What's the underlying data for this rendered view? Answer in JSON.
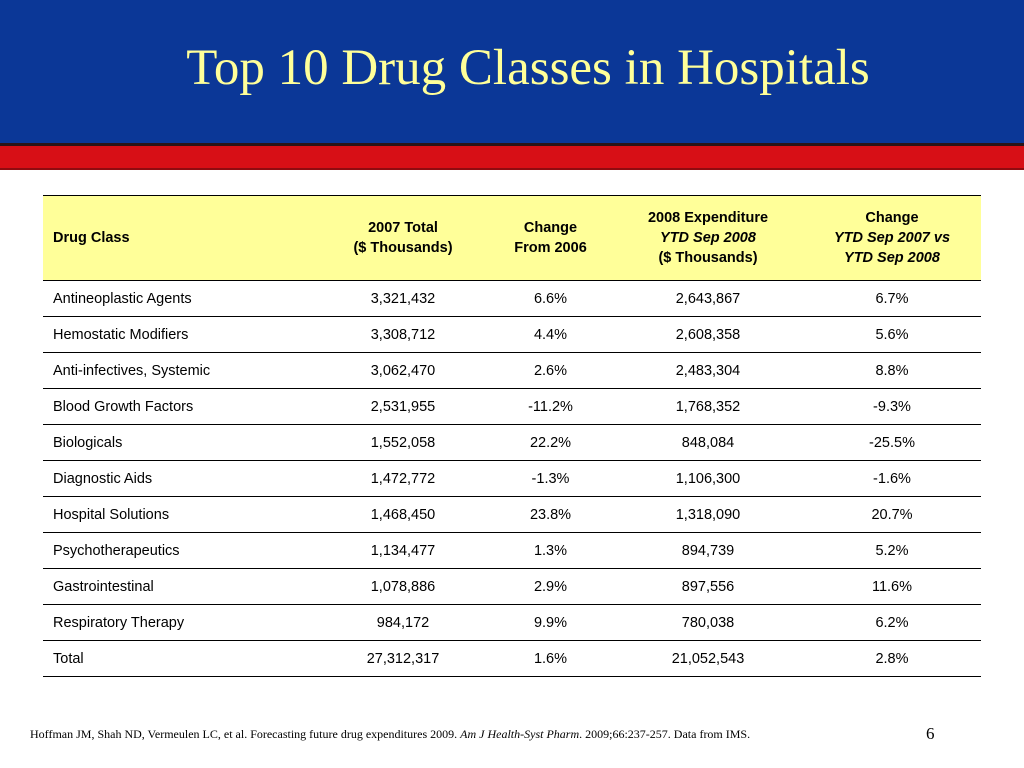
{
  "slide": {
    "title": "Top 10 Drug Classes in Hospitals",
    "page_number": "6",
    "colors": {
      "title_band": "#0b3797",
      "title_text": "#ffff99",
      "accent_red": "#d70f16",
      "header_fill": "#ffff99"
    }
  },
  "table": {
    "headers": {
      "drug_class": "Drug Class",
      "total_2007": [
        "2007 Total",
        "($ Thousands)"
      ],
      "change_2006": [
        "Change",
        "From 2006"
      ],
      "expenditure_2008": [
        "2008 Expenditure",
        "YTD Sep 2008",
        "($ Thousands)"
      ],
      "change_ytd": [
        "Change",
        "YTD Sep 2007 vs",
        "YTD Sep 2008"
      ]
    },
    "rows": [
      {
        "name": "Antineoplastic Agents",
        "total_2007": "3,321,432",
        "change_2006": "6.6%",
        "expenditure_2008": "2,643,867",
        "change_ytd": "6.7%"
      },
      {
        "name": "Hemostatic Modifiers",
        "total_2007": "3,308,712",
        "change_2006": "4.4%",
        "expenditure_2008": "2,608,358",
        "change_ytd": "5.6%"
      },
      {
        "name": "Anti-infectives, Systemic",
        "total_2007": "3,062,470",
        "change_2006": "2.6%",
        "expenditure_2008": "2,483,304",
        "change_ytd": "8.8%"
      },
      {
        "name": "Blood Growth Factors",
        "total_2007": "2,531,955",
        "change_2006": "-11.2%",
        "expenditure_2008": "1,768,352",
        "change_ytd": "-9.3%"
      },
      {
        "name": "Biologicals",
        "total_2007": "1,552,058",
        "change_2006": "22.2%",
        "expenditure_2008": "848,084",
        "change_ytd": "-25.5%"
      },
      {
        "name": "Diagnostic Aids",
        "total_2007": "1,472,772",
        "change_2006": "-1.3%",
        "expenditure_2008": "1,106,300",
        "change_ytd": "-1.6%"
      },
      {
        "name": "Hospital Solutions",
        "total_2007": "1,468,450",
        "change_2006": "23.8%",
        "expenditure_2008": "1,318,090",
        "change_ytd": "20.7%"
      },
      {
        "name": "Psychotherapeutics",
        "total_2007": "1,134,477",
        "change_2006": "1.3%",
        "expenditure_2008": "894,739",
        "change_ytd": "5.2%"
      },
      {
        "name": "Gastrointestinal",
        "total_2007": "1,078,886",
        "change_2006": "2.9%",
        "expenditure_2008": "897,556",
        "change_ytd": "11.6%"
      },
      {
        "name": "Respiratory Therapy",
        "total_2007": "984,172",
        "change_2006": "9.9%",
        "expenditure_2008": "780,038",
        "change_ytd": "6.2%"
      },
      {
        "name": "Total",
        "total_2007": "27,312,317",
        "change_2006": "1.6%",
        "expenditure_2008": "21,052,543",
        "change_ytd": "2.8%"
      }
    ]
  },
  "footer": {
    "citation_start": "Hoffman JM, Shah ND, Vermeulen LC, et al.  Forecasting future drug expenditures 2009.  ",
    "journal": "Am J Health-Syst Pharm",
    "citation_end": ". 2009;66:237-257.  Data from IMS."
  }
}
